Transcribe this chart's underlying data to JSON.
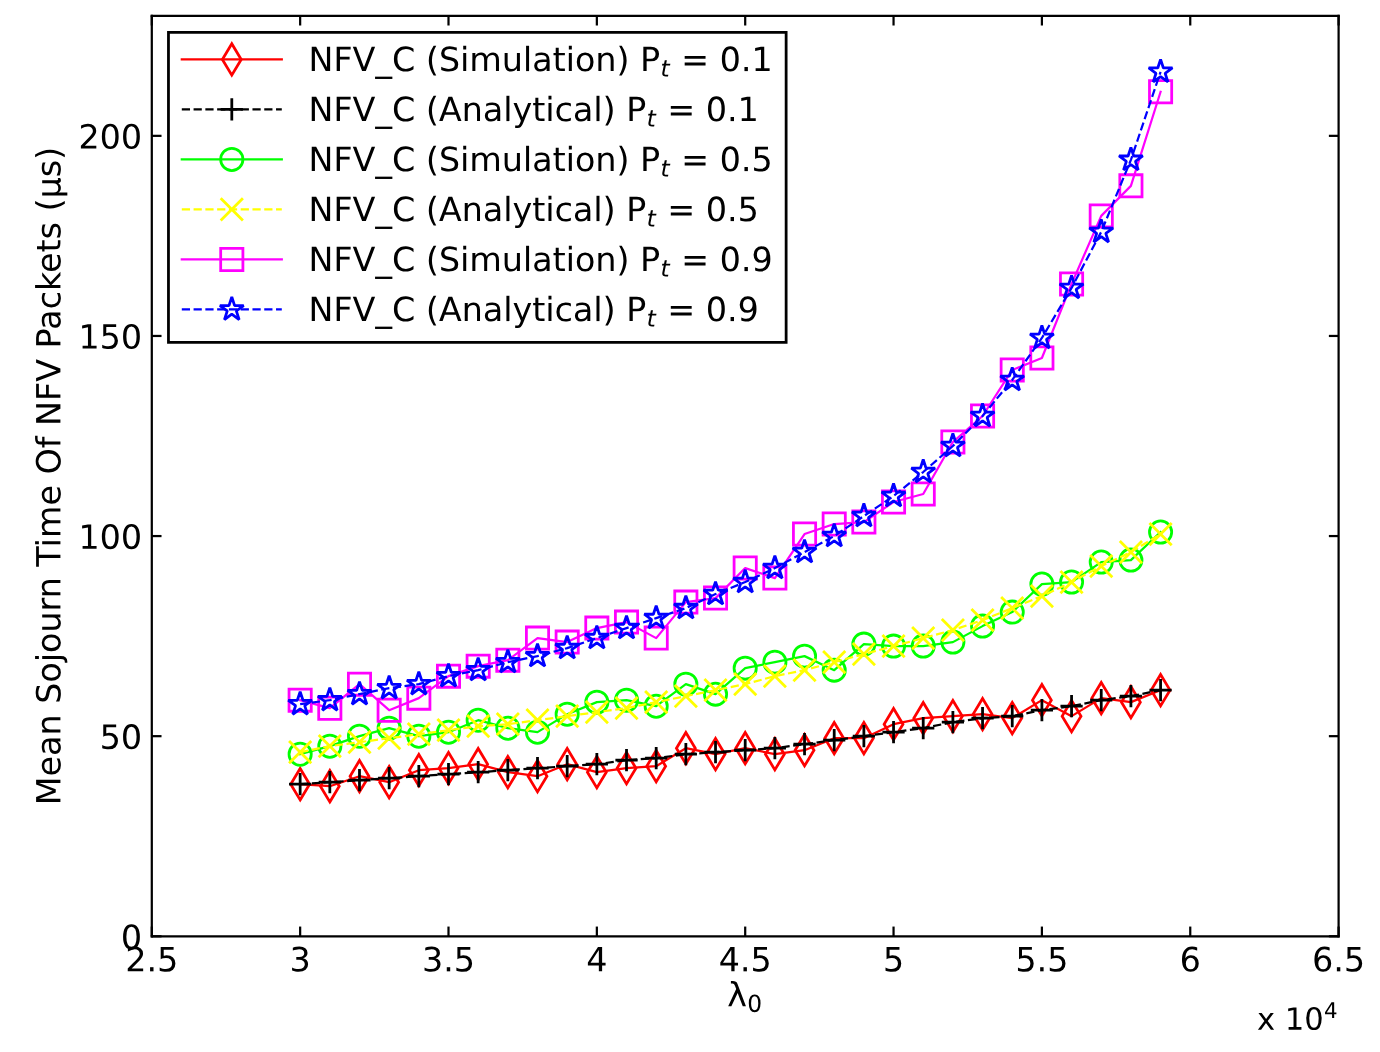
{
  "chart_data": {
    "type": "line",
    "xlabel": "λ$_{0}$",
    "ylabel": "Mean Sojourn Time Of NFV Packets (µs)",
    "x": [
      3.0,
      3.1,
      3.2,
      3.3,
      3.4,
      3.5,
      3.6,
      3.7,
      3.8,
      3.9,
      4.0,
      4.1,
      4.2,
      4.3,
      4.4,
      4.5,
      4.6,
      4.7,
      4.8,
      4.9,
      5.0,
      5.1,
      5.2,
      5.3,
      5.4,
      5.5,
      5.6,
      5.7,
      5.8,
      5.9
    ],
    "xlim": [
      2.5,
      6.5
    ],
    "xticks": [
      2.5,
      3,
      3.5,
      4,
      4.5,
      5,
      5.5,
      6,
      6.5
    ],
    "ylim": [
      0,
      230
    ],
    "yticks": [
      0,
      50,
      100,
      150,
      200
    ],
    "annotations": [
      "x 10$^{4}$"
    ],
    "grid": false,
    "legend": "top left",
    "series": [
      {
        "name": "NFV_C (Simulation) P$_{t}$ = 0.1",
        "color": "#ff0000",
        "marker": "diamond",
        "line_style": "solid",
        "values": [
          38,
          37.5,
          40,
          38.5,
          41.5,
          42,
          43,
          41,
          40,
          43,
          41,
          42,
          42.5,
          47,
          45.5,
          47,
          45.5,
          46.5,
          49.5,
          49.5,
          53,
          54.5,
          55,
          55.5,
          54.5,
          59,
          55,
          59.5,
          58.5,
          61.5
        ]
      },
      {
        "name": "NFV_C (Analytical) P$_{t}$ = 0.1",
        "color": "#000000",
        "marker": "plus",
        "line_style": "dashed",
        "values": [
          38,
          38.5,
          39,
          39.5,
          40,
          40.5,
          41,
          41.5,
          42,
          42.5,
          43,
          44,
          44.5,
          45.5,
          46,
          46.5,
          47,
          48,
          49,
          50,
          51,
          52,
          53.5,
          54.5,
          55,
          56.5,
          57.5,
          59,
          60,
          61.5
        ]
      },
      {
        "name": "NFV_C (Simulation) P$_{t}$ = 0.5",
        "color": "#00ff00",
        "marker": "circle",
        "line_style": "solid",
        "values": [
          45.5,
          47.5,
          50,
          52,
          50,
          51,
          54,
          52,
          51,
          55.5,
          58.5,
          59,
          57.5,
          63,
          60.5,
          67,
          68.5,
          70,
          66.5,
          73,
          72.5,
          72.5,
          73.5,
          77.5,
          81,
          88,
          88.5,
          93.5,
          94,
          101
        ]
      },
      {
        "name": "NFV_C (Analytical) P$_{t}$ = 0.5",
        "color": "#ffff00",
        "marker": "cross",
        "line_style": "dashed",
        "values": [
          46,
          47.5,
          48.5,
          49.5,
          50.5,
          51.5,
          52.5,
          53,
          54,
          55,
          56,
          57,
          58.5,
          60,
          61.5,
          63,
          65,
          66.5,
          68.5,
          70.5,
          72.5,
          74.5,
          76.5,
          79,
          82,
          85,
          88.5,
          92.5,
          96,
          100.5
        ]
      },
      {
        "name": "NFV_C (Simulation) P$_{t}$ = 0.9",
        "color": "#ff00ff",
        "marker": "square",
        "line_style": "solid",
        "values": [
          59,
          57,
          63,
          56.5,
          59.5,
          65,
          67.5,
          69,
          74.5,
          73.5,
          77,
          78.5,
          74.5,
          83.5,
          84.5,
          92,
          89.5,
          100.5,
          103,
          103.5,
          108.5,
          110.5,
          123.5,
          130,
          141.5,
          144.5,
          163,
          180,
          187.5,
          211
        ]
      },
      {
        "name": "NFV_C (Analytical) P$_{t}$ = 0.9",
        "color": "#0000ff",
        "marker": "star",
        "line_style": "dashed",
        "values": [
          58,
          59,
          60.5,
          62,
          63,
          65,
          66.5,
          68.5,
          70,
          72,
          74.5,
          77,
          79.5,
          82,
          85.5,
          88.5,
          92,
          96,
          100,
          105,
          110,
          116,
          122.5,
          130,
          139,
          149.5,
          162,
          176,
          194,
          216
        ]
      }
    ]
  }
}
